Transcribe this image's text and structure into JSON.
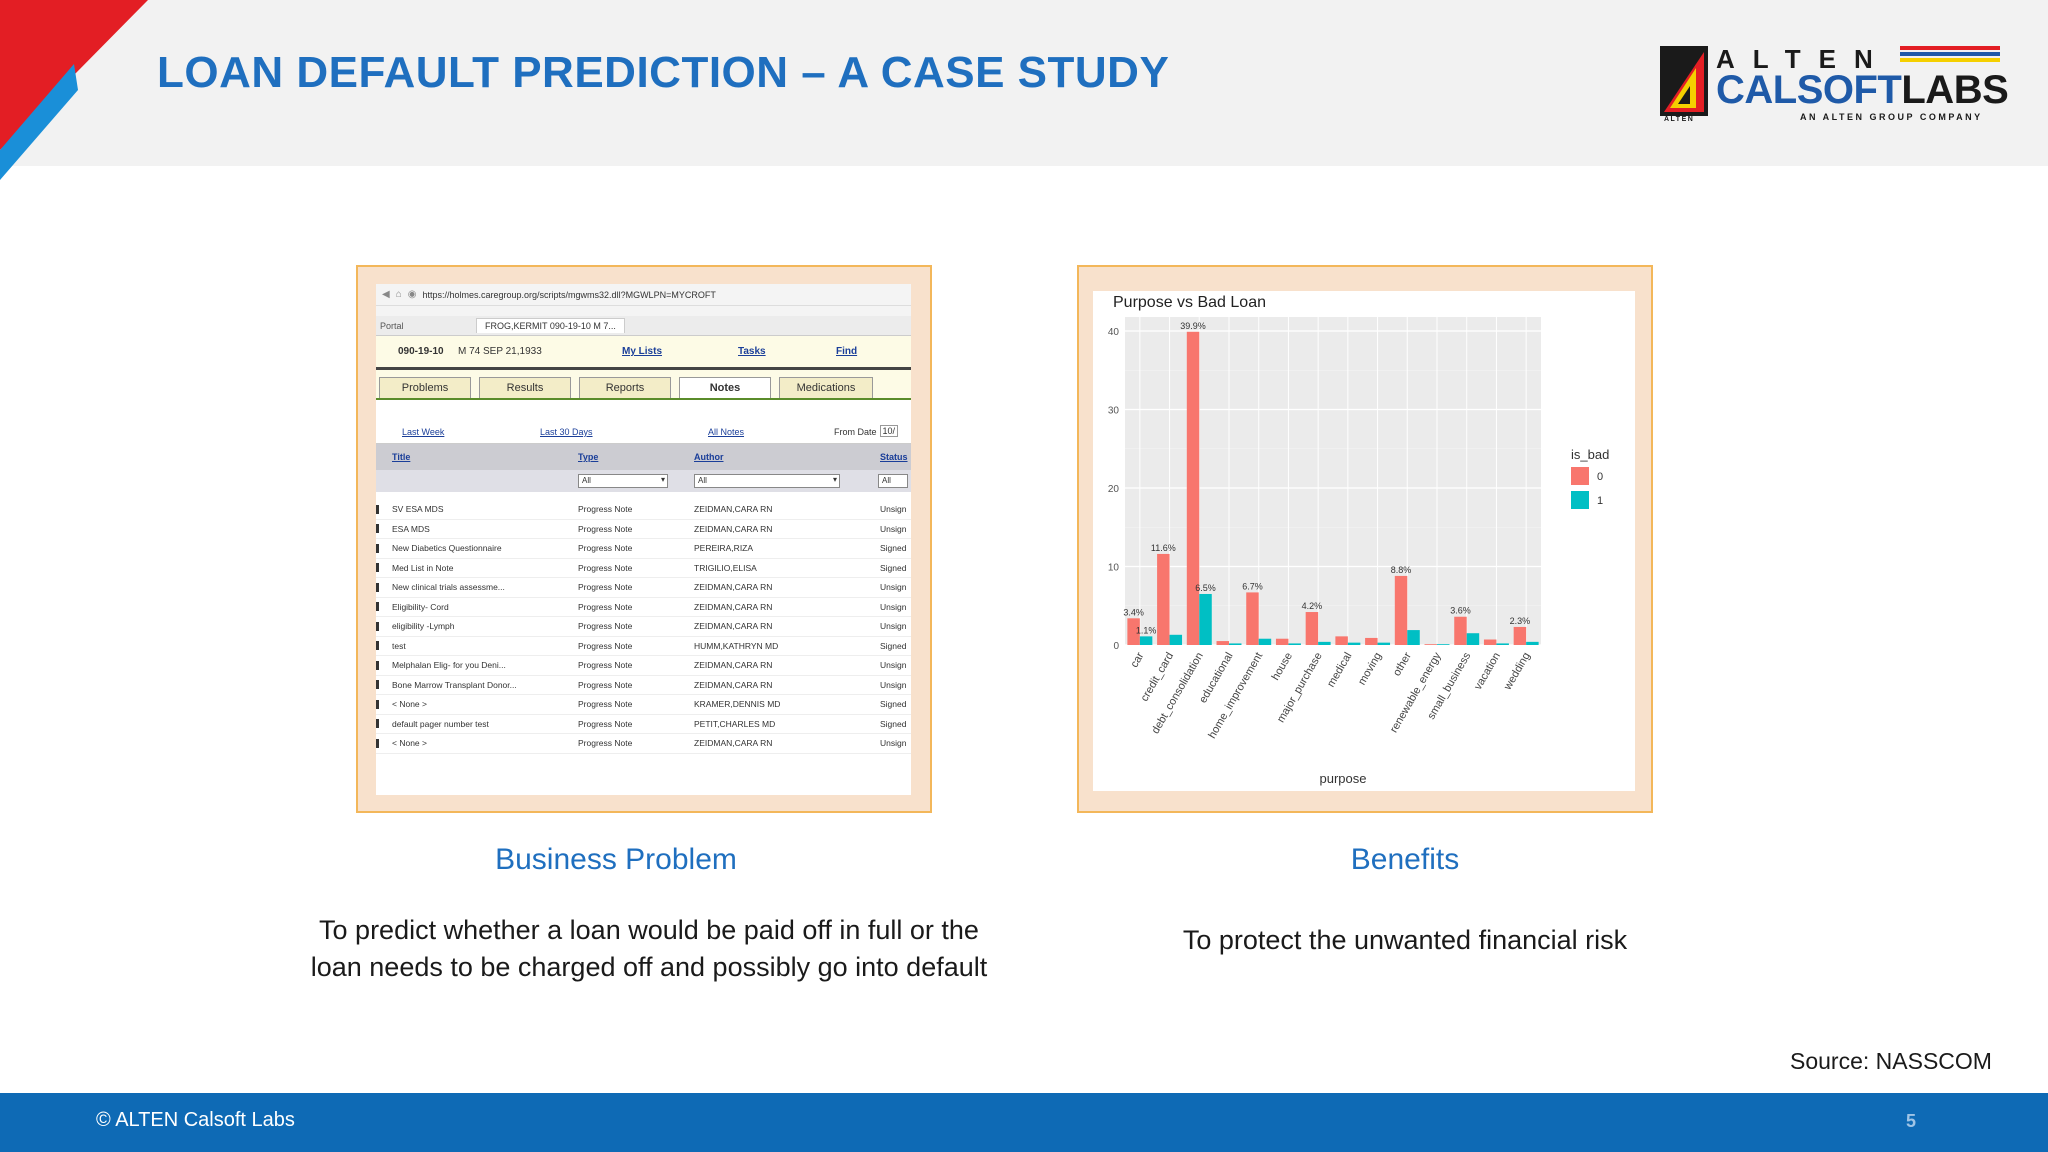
{
  "slide": {
    "title": "LOAN DEFAULT PREDICTION – A CASE STUDY",
    "logo": {
      "top_word": "ALTEN",
      "main_word_1": "CALSOFT",
      "main_word_2": "LABS",
      "tagline": "AN ALTEN GROUP COMPANY",
      "small": "ALTEN"
    },
    "left": {
      "heading": "Business Problem",
      "text_line1": "To predict whether a loan would be paid off in full or the",
      "text_line2": "loan needs to be charged off and possibly go into default"
    },
    "right": {
      "heading": "Benefits",
      "text": "To protect the unwanted financial risk"
    },
    "source": "Source: NASSCOM",
    "footer": {
      "copyright": "© ALTEN Calsoft Labs",
      "page": "5"
    },
    "colors": {
      "title_blue": "#1f6fbf",
      "footer_blue": "#0e6ab5",
      "accent_red": "#e31e24",
      "panel_bg": "#f8e1cc",
      "panel_border": "#f3b75a",
      "series_0": "#f8766d",
      "series_1": "#00bfc4"
    }
  },
  "emr": {
    "url": "https://holmes.caregroup.org/scripts/mgwms32.dll?MGWLPN=MYCROFT",
    "tab_portal": "Portal",
    "tab_patient": "FROG,KERMIT 090-19-10 M 7...",
    "mrn": "090-19-10",
    "demo": "M 74  SEP 21,1933",
    "link_mylists": "My Lists",
    "link_tasks": "Tasks",
    "link_find": "Find",
    "nav": [
      {
        "label": "Problems"
      },
      {
        "label": "Results"
      },
      {
        "label": "Reports"
      },
      {
        "label": "Notes"
      },
      {
        "label": "Medications"
      }
    ],
    "filter_lastweek": "Last Week",
    "filter_last30": "Last 30 Days",
    "filter_all": "All Notes",
    "filter_from": "From Date",
    "filter_from_value": "10/",
    "col_title": "Title",
    "col_type": "Type",
    "col_author": "Author",
    "col_status": "Status",
    "sel_all": "All",
    "rows": [
      {
        "title": "SV ESA MDS",
        "type": "Progress Note",
        "author": "ZEIDMAN,CARA RN",
        "status": "Unsign"
      },
      {
        "title": "ESA MDS",
        "type": "Progress Note",
        "author": "ZEIDMAN,CARA RN",
        "status": "Unsign"
      },
      {
        "title": "New Diabetics Questionnaire",
        "type": "Progress Note",
        "author": "PEREIRA,RIZA",
        "status": "Signed"
      },
      {
        "title": "Med List in Note",
        "type": "Progress Note",
        "author": "TRIGILIO,ELISA",
        "status": "Signed"
      },
      {
        "title": "New clinical trials assessme...",
        "type": "Progress Note",
        "author": "ZEIDMAN,CARA RN",
        "status": "Unsign"
      },
      {
        "title": "Eligibility- Cord",
        "type": "Progress Note",
        "author": "ZEIDMAN,CARA RN",
        "status": "Unsign"
      },
      {
        "title": "eligibility -Lymph",
        "type": "Progress Note",
        "author": "ZEIDMAN,CARA RN",
        "status": "Unsign"
      },
      {
        "title": "test",
        "type": "Progress Note",
        "author": "HUMM,KATHRYN MD",
        "status": "Signed"
      },
      {
        "title": "Melphalan Elig- for you Deni...",
        "type": "Progress Note",
        "author": "ZEIDMAN,CARA RN",
        "status": "Unsign"
      },
      {
        "title": "Bone Marrow Transplant Donor...",
        "type": "Progress Note",
        "author": "ZEIDMAN,CARA RN",
        "status": "Unsign"
      },
      {
        "title": "< None >",
        "type": "Progress Note",
        "author": "KRAMER,DENNIS MD",
        "status": "Signed"
      },
      {
        "title": "default pager number test",
        "type": "Progress Note",
        "author": "PETIT,CHARLES MD",
        "status": "Signed"
      },
      {
        "title": "< None >",
        "type": "Progress Note",
        "author": "ZEIDMAN,CARA RN",
        "status": "Unsign"
      }
    ]
  },
  "chart_data": {
    "type": "bar",
    "title": "Purpose vs Bad Loan",
    "xlabel": "purpose",
    "ylabel": "",
    "ylim": [
      0,
      40
    ],
    "yticks": [
      0,
      10,
      20,
      30,
      40
    ],
    "grid": true,
    "legend_title": "is_bad",
    "legend_position": "right",
    "categories": [
      "car",
      "credit_card",
      "debt_consolidation",
      "educational",
      "home_improvement",
      "house",
      "major_purchase",
      "medical",
      "moving",
      "other",
      "renewable_energy",
      "small_business",
      "vacation",
      "wedding"
    ],
    "series": [
      {
        "name": "0",
        "color": "#f8766d",
        "values": [
          3.4,
          11.6,
          39.9,
          0.5,
          6.7,
          0.8,
          4.2,
          1.1,
          0.9,
          8.8,
          0.1,
          3.6,
          0.7,
          2.3
        ]
      },
      {
        "name": "1",
        "color": "#00bfc4",
        "values": [
          1.1,
          1.3,
          6.5,
          0.2,
          0.8,
          0.2,
          0.4,
          0.3,
          0.3,
          1.9,
          0.1,
          1.5,
          0.2,
          0.4
        ]
      }
    ],
    "data_labels": [
      [
        "3.4%",
        "11.6%",
        "39.9%",
        "",
        "6.7%",
        "",
        "4.2%",
        "",
        "",
        "8.8%",
        "",
        "3.6%",
        "",
        "2.3%"
      ],
      [
        "1.1%",
        "",
        "6.5%",
        "",
        "",
        "",
        "",
        "",
        "",
        "",
        "",
        "",
        "",
        ""
      ]
    ]
  }
}
